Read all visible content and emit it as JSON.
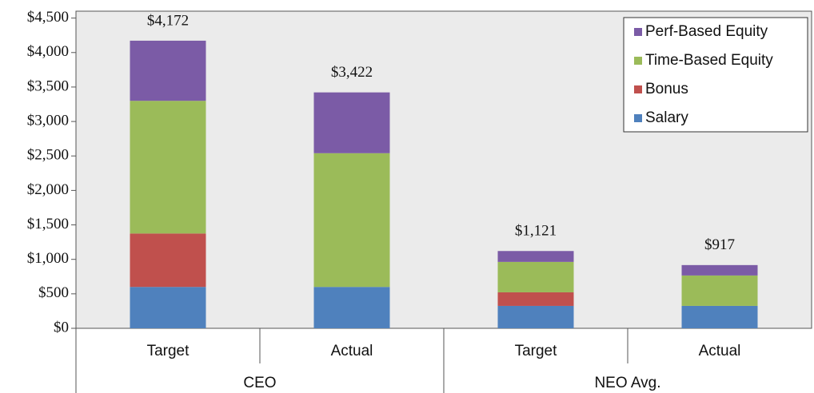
{
  "chart_data": {
    "type": "stacked_bar",
    "groups": [
      {
        "name": "CEO",
        "categories": [
          "Target",
          "Actual"
        ]
      },
      {
        "name": "NEO Avg.",
        "categories": [
          "Target",
          "Actual"
        ]
      }
    ],
    "series": [
      {
        "name": "Salary",
        "color": "#4f81bd",
        "values": [
          600,
          600,
          325,
          325
        ]
      },
      {
        "name": "Bonus",
        "color": "#c0504d",
        "values": [
          775,
          0,
          197,
          0
        ]
      },
      {
        "name": "Time-Based Equity",
        "color": "#9bbb59",
        "values": [
          1925,
          1940,
          441,
          441
        ]
      },
      {
        "name": "Perf-Based Equity",
        "color": "#7b5ba6",
        "values": [
          872,
          882,
          158,
          151
        ]
      }
    ],
    "totals": [
      4172,
      3422,
      1121,
      917
    ],
    "total_labels": [
      "$4,172",
      "$3,422",
      "$1,121",
      "$917"
    ],
    "ylim": [
      0,
      4600
    ],
    "yticks": [
      {
        "value": 0,
        "label": "$0"
      },
      {
        "value": 500,
        "label": "$500"
      },
      {
        "value": 1000,
        "label": "$1,000"
      },
      {
        "value": 1500,
        "label": "$1,500"
      },
      {
        "value": 2000,
        "label": "$2,000"
      },
      {
        "value": 2500,
        "label": "$2,500"
      },
      {
        "value": 3000,
        "label": "$3,000"
      },
      {
        "value": 3500,
        "label": "$3,500"
      },
      {
        "value": 4000,
        "label": "$4,000"
      },
      {
        "value": 4500,
        "label": "$4,500"
      }
    ],
    "legend_position": "top-right"
  }
}
